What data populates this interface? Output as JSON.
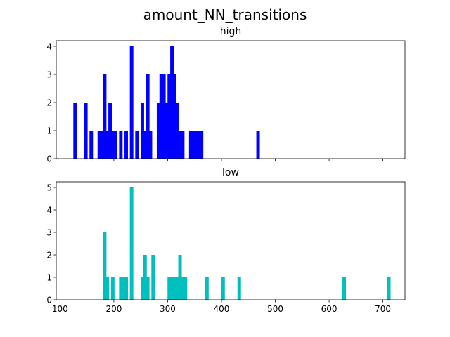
{
  "figure": {
    "title": "amount_NN_transitions"
  },
  "chart_data": [
    {
      "type": "bar",
      "title": "high",
      "xlim": [
        93,
        741
      ],
      "ylim": [
        0,
        4.2
      ],
      "yticks": [
        0,
        1,
        2,
        3,
        4
      ],
      "xticks": [
        100,
        200,
        300,
        400,
        500,
        600,
        700
      ],
      "show_xtick_labels": false,
      "bar_width": 6.5,
      "color": "#0000ff",
      "x": [
        128,
        148,
        158,
        173,
        178,
        183,
        188,
        193,
        198,
        203,
        213,
        223,
        233,
        243,
        253,
        258,
        263,
        268,
        283,
        288,
        293,
        298,
        303,
        308,
        313,
        318,
        323,
        328,
        343,
        348,
        353,
        358,
        363,
        468
      ],
      "values": [
        2,
        2,
        1,
        1,
        1,
        3,
        1,
        2,
        1,
        1,
        1,
        1,
        4,
        1,
        2,
        1,
        3,
        1,
        2,
        3,
        3,
        2,
        3,
        4,
        3,
        2,
        1,
        1,
        1,
        1,
        1,
        1,
        1,
        1
      ]
    },
    {
      "type": "bar",
      "title": "low",
      "xlim": [
        93,
        741
      ],
      "ylim": [
        0,
        5.25
      ],
      "yticks": [
        0,
        1,
        2,
        3,
        4,
        5
      ],
      "xticks": [
        100,
        200,
        300,
        400,
        500,
        600,
        700
      ],
      "xtick_labels": [
        "100",
        "200",
        "300",
        "400",
        "500",
        "600",
        "700"
      ],
      "show_xtick_labels": true,
      "bar_width": 6.5,
      "color": "#00bfbf",
      "x": [
        183,
        188,
        198,
        213,
        218,
        223,
        233,
        253,
        258,
        263,
        273,
        303,
        308,
        313,
        318,
        323,
        328,
        333,
        373,
        403,
        433,
        628,
        711
      ],
      "values": [
        3,
        1,
        1,
        1,
        1,
        1,
        5,
        1,
        2,
        1,
        2,
        1,
        1,
        1,
        1,
        2,
        1,
        1,
        1,
        1,
        1,
        1,
        1
      ]
    }
  ]
}
